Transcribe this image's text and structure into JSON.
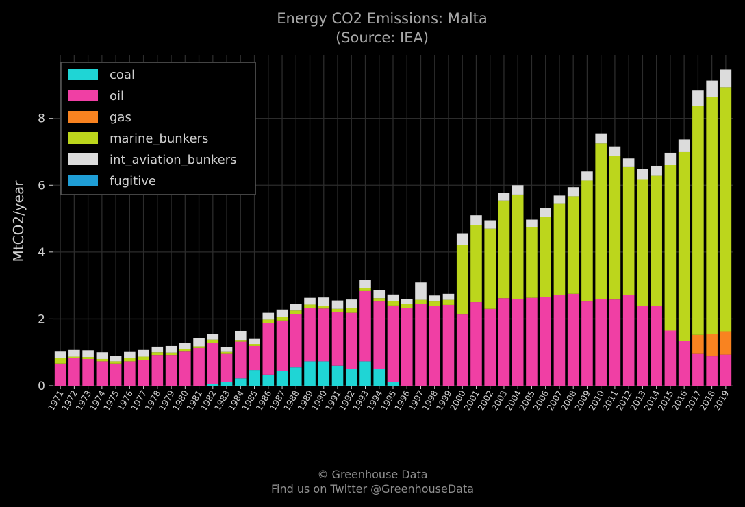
{
  "chart_data": {
    "type": "bar",
    "stacked": true,
    "title": "Energy CO2 Emissions: Malta",
    "subtitle": "(Source: IEA)",
    "xlabel": "",
    "ylabel": "MtCO2/year",
    "ylim": [
      0,
      9.9
    ],
    "yticks": [
      0,
      2,
      4,
      6,
      8
    ],
    "grid": true,
    "legend_position": "top-left",
    "categories": [
      "1971",
      "1972",
      "1973",
      "1974",
      "1975",
      "1976",
      "1977",
      "1978",
      "1979",
      "1980",
      "1981",
      "1982",
      "1983",
      "1984",
      "1985",
      "1986",
      "1987",
      "1988",
      "1989",
      "1990",
      "1991",
      "1992",
      "1993",
      "1994",
      "1995",
      "1996",
      "1997",
      "1998",
      "1999",
      "2000",
      "2001",
      "2002",
      "2003",
      "2004",
      "2005",
      "2006",
      "2007",
      "2008",
      "2009",
      "2010",
      "2011",
      "2012",
      "2013",
      "2014",
      "2015",
      "2016",
      "2017",
      "2018",
      "2019"
    ],
    "series": [
      {
        "name": "coal",
        "color": "#1fd5d5",
        "values": [
          0,
          0,
          0,
          0,
          0,
          0,
          0,
          0,
          0,
          0,
          0,
          0.05,
          0.12,
          0.22,
          0.47,
          0.33,
          0.45,
          0.55,
          0.73,
          0.73,
          0.6,
          0.5,
          0.73,
          0.5,
          0.12,
          0,
          0,
          0,
          0,
          0,
          0,
          0,
          0,
          0,
          0,
          0,
          0,
          0,
          0,
          0,
          0,
          0,
          0,
          0,
          0,
          0,
          0,
          0,
          0
        ]
      },
      {
        "name": "oil",
        "color": "#f03fa4",
        "values": [
          0.66,
          0.82,
          0.8,
          0.73,
          0.66,
          0.73,
          0.76,
          0.92,
          0.92,
          1.02,
          1.13,
          1.23,
          0.85,
          1.1,
          0.72,
          1.55,
          1.5,
          1.6,
          1.6,
          1.58,
          1.6,
          1.68,
          2.1,
          2.02,
          2.28,
          2.33,
          2.45,
          2.38,
          2.42,
          2.13,
          2.5,
          2.3,
          2.62,
          2.6,
          2.63,
          2.65,
          2.72,
          2.75,
          2.52,
          2.6,
          2.58,
          2.72,
          2.38,
          2.38,
          1.65,
          1.35,
          0.97,
          0.88,
          0.93
        ]
      },
      {
        "name": "gas",
        "color": "#f98320",
        "values": [
          0,
          0,
          0,
          0,
          0,
          0,
          0,
          0,
          0,
          0,
          0,
          0,
          0,
          0,
          0,
          0,
          0,
          0,
          0,
          0,
          0,
          0,
          0,
          0,
          0,
          0,
          0,
          0,
          0,
          0,
          0,
          0,
          0,
          0,
          0,
          0,
          0,
          0,
          0,
          0,
          0,
          0,
          0,
          0,
          0,
          0,
          0.55,
          0.66,
          0.7
        ]
      },
      {
        "name": "marine_bunkers",
        "color": "#bcd61c",
        "values": [
          0.18,
          0.05,
          0.06,
          0.07,
          0.07,
          0.1,
          0.11,
          0.08,
          0.07,
          0.07,
          0.05,
          0.1,
          0.04,
          0.05,
          0.06,
          0.1,
          0.1,
          0.1,
          0.1,
          0.08,
          0.1,
          0.15,
          0.1,
          0.1,
          0.13,
          0.12,
          0.12,
          0.14,
          0.15,
          2.08,
          2.3,
          2.4,
          2.92,
          3.12,
          2.12,
          2.4,
          2.72,
          2.92,
          3.62,
          4.65,
          4.3,
          3.82,
          3.8,
          3.9,
          4.95,
          5.64,
          6.86,
          7.1,
          7.3
        ]
      },
      {
        "name": "int_aviation_bunkers",
        "color": "#dcdcdc",
        "values": [
          0.18,
          0.2,
          0.2,
          0.2,
          0.17,
          0.18,
          0.2,
          0.17,
          0.2,
          0.2,
          0.25,
          0.17,
          0.15,
          0.27,
          0.15,
          0.2,
          0.23,
          0.2,
          0.2,
          0.25,
          0.25,
          0.25,
          0.23,
          0.23,
          0.2,
          0.15,
          0.52,
          0.18,
          0.18,
          0.35,
          0.3,
          0.25,
          0.23,
          0.28,
          0.22,
          0.27,
          0.25,
          0.27,
          0.27,
          0.3,
          0.28,
          0.26,
          0.3,
          0.3,
          0.37,
          0.38,
          0.45,
          0.49,
          0.53
        ]
      },
      {
        "name": "fugitive",
        "color": "#1f9ed6",
        "values": [
          0,
          0,
          0,
          0,
          0,
          0,
          0,
          0,
          0,
          0,
          0,
          0,
          0,
          0,
          0,
          0,
          0,
          0,
          0,
          0,
          0,
          0,
          0,
          0,
          0,
          0,
          0,
          0,
          0,
          0,
          0,
          0,
          0,
          0,
          0,
          0,
          0,
          0,
          0,
          0,
          0,
          0,
          0,
          0,
          0,
          0,
          0,
          0,
          0
        ]
      }
    ]
  },
  "footer": {
    "line1": "© Greenhouse Data",
    "line2": "Find us on Twitter @GreenhouseData"
  }
}
